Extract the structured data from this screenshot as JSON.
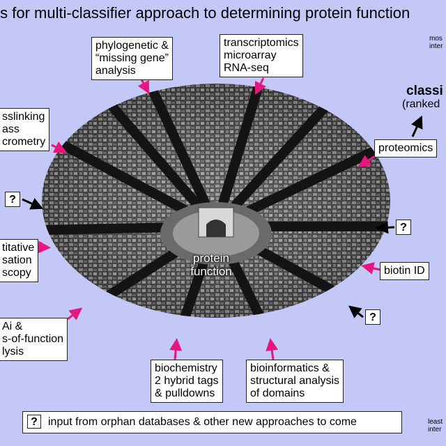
{
  "title": "ts for multi-classifier approach to determining protein function",
  "top_right": {
    "line1": "mos",
    "line2": "inter"
  },
  "bottom_right": {
    "line1": "least",
    "line2": "inter"
  },
  "classifier": {
    "title": "classi",
    "subtitle": "(ranked"
  },
  "center": {
    "line1": "protein",
    "line2": "function"
  },
  "question_mark": "?",
  "boxes": {
    "phylogenetic": [
      "phylogenetic &",
      "“missing gene”",
      "analysis"
    ],
    "transcriptomics": [
      "transcriptomics",
      "microarray",
      "RNA-seq"
    ],
    "crosslinking": [
      "sslinking",
      "ass",
      "crometry"
    ],
    "proteomics": [
      "proteomics"
    ],
    "localisation": [
      "titative",
      "sation",
      "scopy"
    ],
    "biotin": [
      "biotin ID"
    ],
    "rnai": [
      "Ai &",
      "s-of-function",
      "lysis"
    ],
    "biochemistry": [
      "biochemistry",
      "2 hybrid tags",
      "& pulldowns"
    ],
    "bioinformatics": [
      "bioinformatics &",
      "structural analysis",
      "of domains"
    ]
  },
  "legend": "input from orphan databases & other new approaches to come",
  "colors": {
    "background": "#c3c8f6",
    "arrow_pink": "#e8157f",
    "arrow_black": "#000000"
  }
}
